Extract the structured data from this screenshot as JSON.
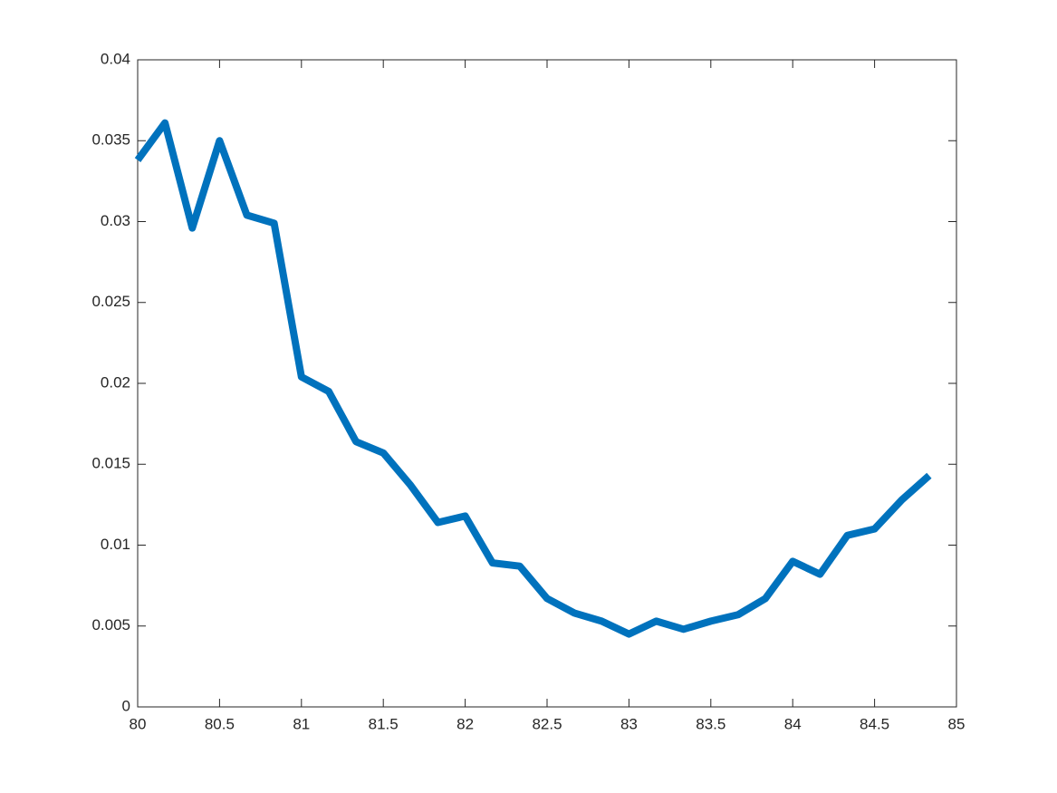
{
  "chart_data": {
    "type": "line",
    "color": "#0072bd",
    "x": [
      80,
      80.1667,
      80.3333,
      80.5,
      80.6667,
      80.8333,
      81,
      81.1667,
      81.3333,
      81.5,
      81.6667,
      81.8333,
      82,
      82.1667,
      82.3333,
      82.5,
      82.6667,
      82.8333,
      83,
      83.1667,
      83.3333,
      83.5,
      83.6667,
      83.8333,
      84,
      84.1667,
      84.3333,
      84.5,
      84.6667,
      84.8333
    ],
    "values": [
      0.0338,
      0.0361,
      0.0296,
      0.035,
      0.0304,
      0.0299,
      0.0204,
      0.0195,
      0.0164,
      0.0157,
      0.0137,
      0.0114,
      0.0118,
      0.0089,
      0.0087,
      0.0067,
      0.0058,
      0.0053,
      0.0045,
      0.0053,
      0.0048,
      0.0053,
      0.0057,
      0.0067,
      0.009,
      0.0082,
      0.0106,
      0.011,
      0.0128,
      0.0143
    ],
    "xlim": [
      80,
      85
    ],
    "xticks": [
      80,
      80.5,
      81,
      81.5,
      82,
      82.5,
      83,
      83.5,
      84,
      84.5,
      85
    ],
    "ylim": [
      0,
      0.04
    ],
    "yticks": [
      0,
      0.005,
      0.01,
      0.015,
      0.02,
      0.025,
      0.03,
      0.035,
      0.04
    ],
    "grid": false
  }
}
